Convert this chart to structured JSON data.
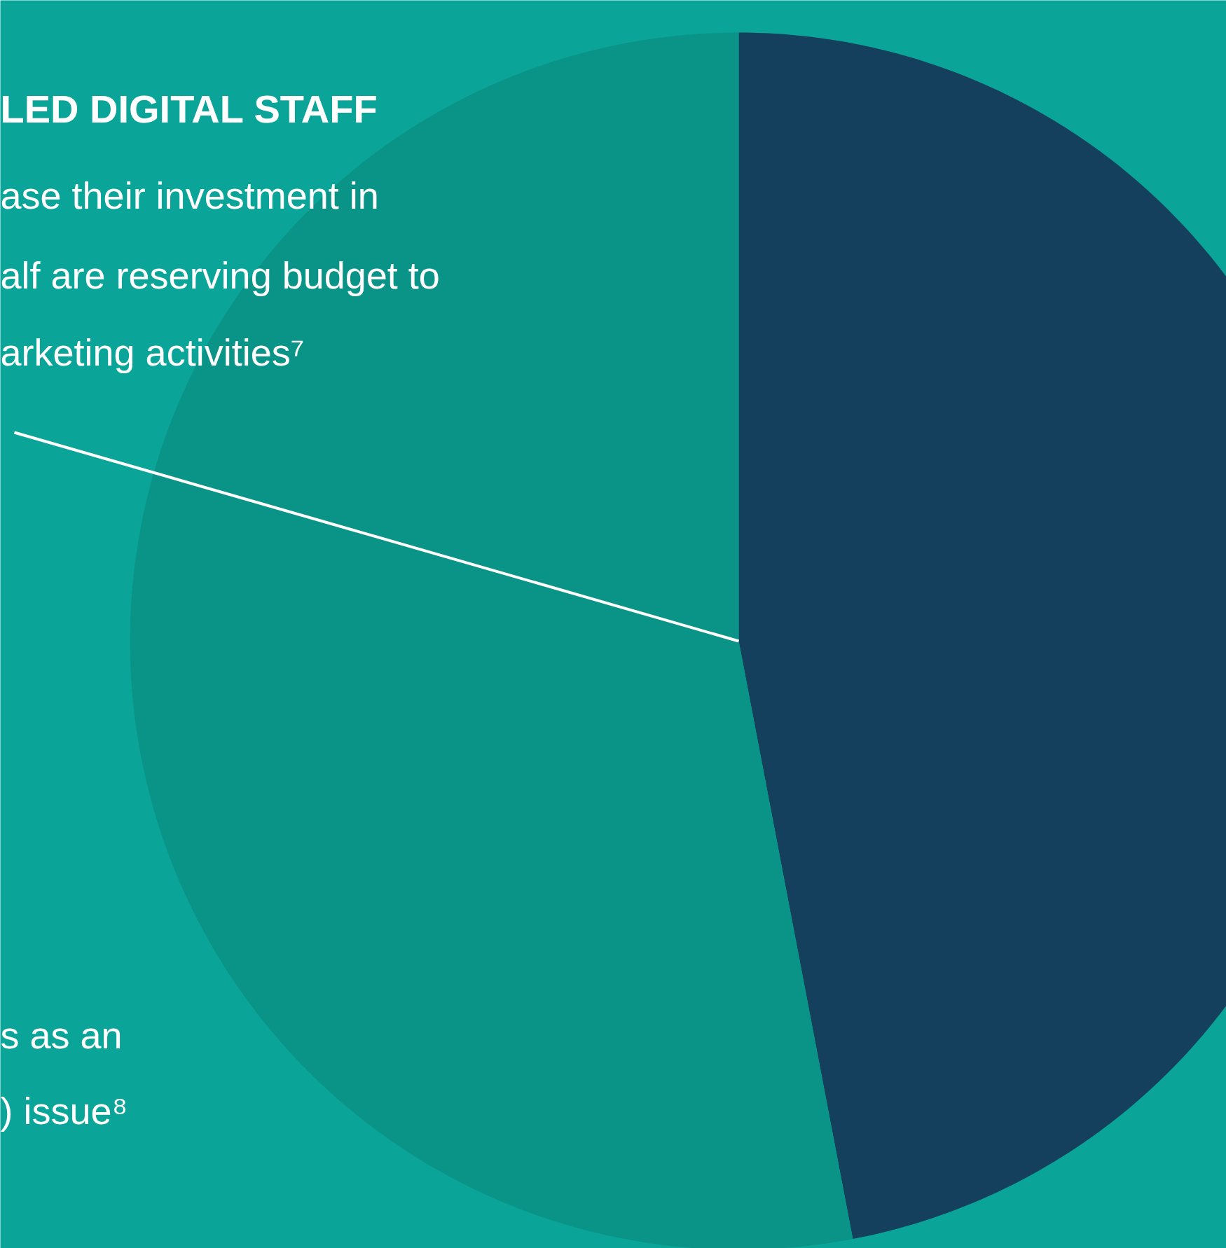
{
  "chart_data": {
    "type": "pie",
    "title": "LED DIGITAL STAFF",
    "categories": [
      null,
      null
    ],
    "values": [
      47,
      53
    ],
    "colors": [
      "#14405e",
      "#0a9487"
    ],
    "annotations": [
      "ase their investment in",
      "alf are reserving budget to",
      "arketing activities⁷",
      "s as an",
      ") issue⁸"
    ]
  }
}
